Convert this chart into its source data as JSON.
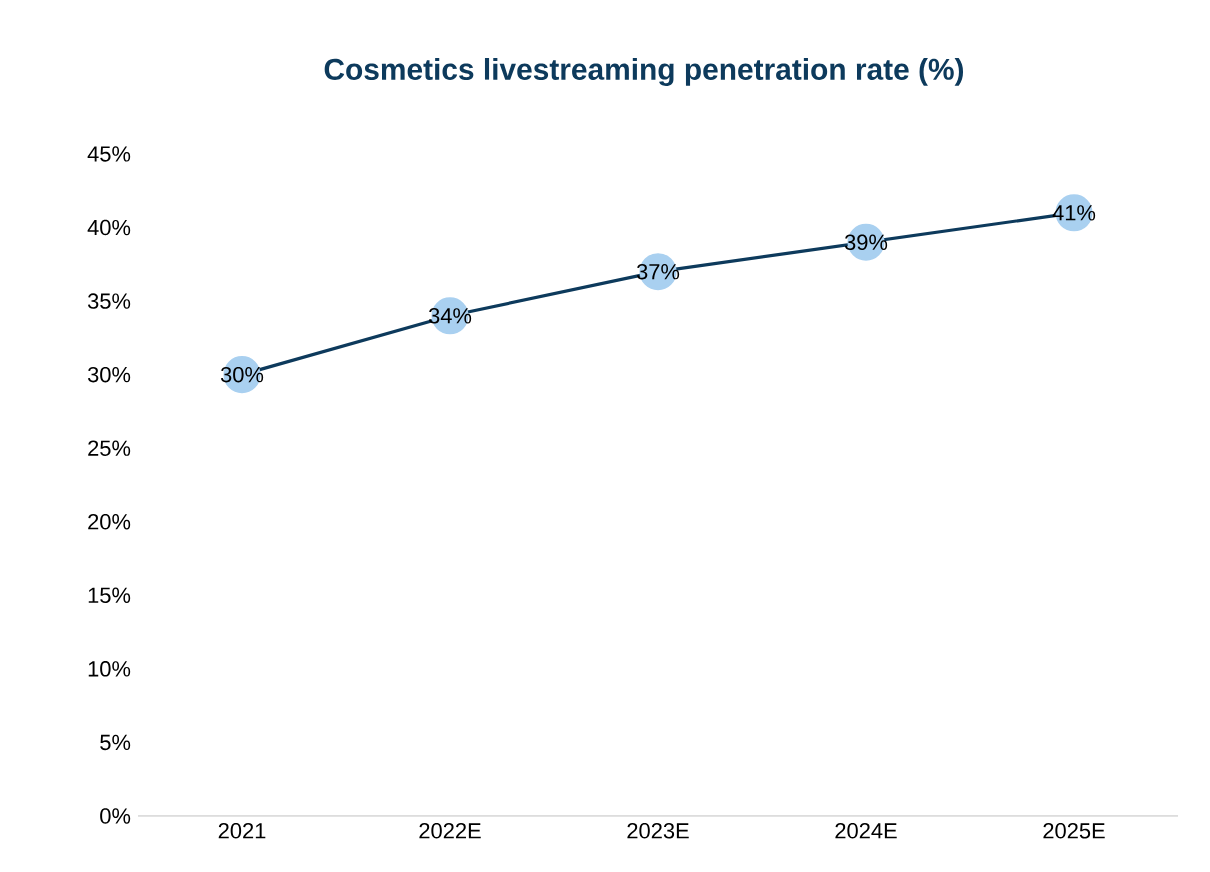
{
  "chart_data": {
    "type": "line",
    "title": "Cosmetics livestreaming penetration rate (%)",
    "categories": [
      "2021",
      "2022E",
      "2023E",
      "2024E",
      "2025E"
    ],
    "series": [
      {
        "color": "#0d3a5c",
        "values": [
          30,
          34,
          37,
          39,
          41
        ],
        "value_labels": [
          "30%",
          "34%",
          "37%",
          "39%",
          "41%"
        ]
      }
    ],
    "marker": "circle",
    "ylim": [
      0,
      45
    ],
    "yticks": [
      {
        "value": 0,
        "label": "0%"
      },
      {
        "value": 5,
        "label": "5%"
      },
      {
        "value": 10,
        "label": "10%"
      },
      {
        "value": 15,
        "label": "15%"
      },
      {
        "value": 20,
        "label": "20%"
      },
      {
        "value": 25,
        "label": "25%"
      },
      {
        "value": 30,
        "label": "30%"
      },
      {
        "value": 35,
        "label": "35%"
      },
      {
        "value": 40,
        "label": "40%"
      },
      {
        "value": 45,
        "label": "45%"
      }
    ]
  }
}
